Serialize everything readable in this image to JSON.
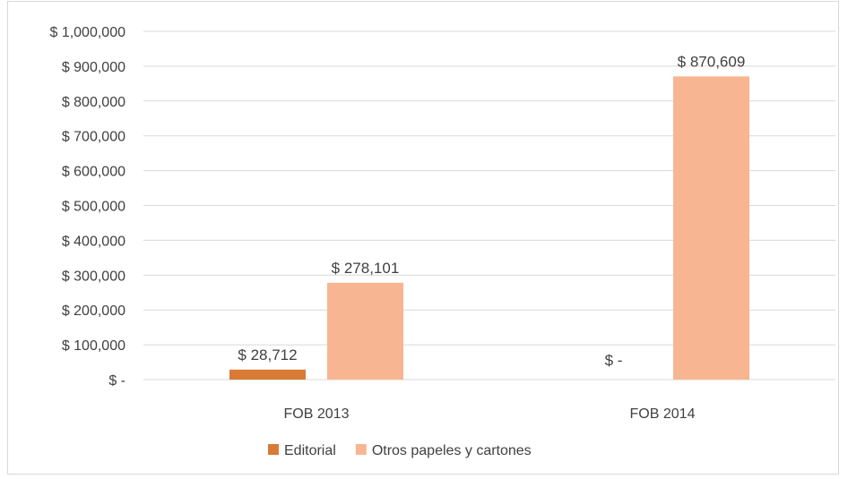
{
  "chart_data": {
    "type": "bar",
    "categories": [
      "FOB 2013",
      "FOB 2014"
    ],
    "series": [
      {
        "name": "Editorial",
        "values": [
          28712,
          0
        ],
        "labels": [
          "$ 28,712",
          "$ -"
        ],
        "color": "#d97a35"
      },
      {
        "name": "Otros papeles y cartones",
        "values": [
          278101,
          870609
        ],
        "labels": [
          "$ 278,101",
          "$ 870,609"
        ],
        "color": "#f8b591"
      }
    ],
    "y_ticks": [
      "$ -",
      "$ 100,000",
      "$ 200,000",
      "$ 300,000",
      "$ 400,000",
      "$ 500,000",
      "$ 600,000",
      "$ 700,000",
      "$ 800,000",
      "$ 900,000",
      "$ 1,000,000"
    ],
    "ylim": [
      0,
      1000000
    ],
    "grid": true,
    "legend_position": "bottom",
    "gridline_color": "#d9d9d9"
  }
}
